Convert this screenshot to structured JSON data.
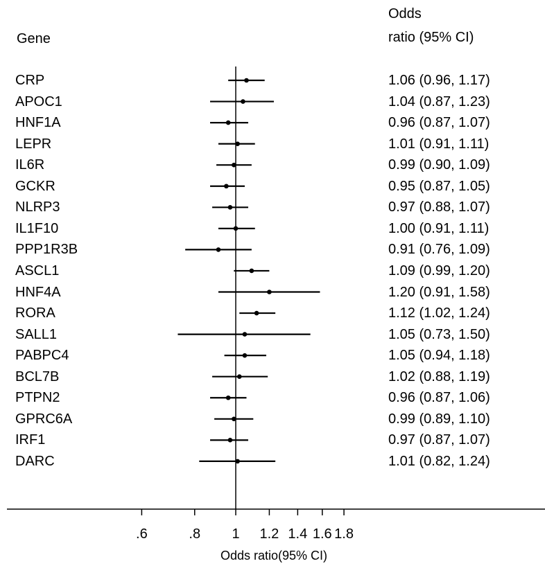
{
  "headers": {
    "gene": "Gene",
    "or_line1": "Odds",
    "or_line2": "ratio (95% CI)"
  },
  "chart_data": {
    "type": "forest",
    "title": "",
    "xlabel": "Odds ratio(95% CI)",
    "xscale": "log",
    "xlim": [
      0.53,
      1.95
    ],
    "reference_line": 1,
    "xticks": [
      {
        "value": 0.6,
        "label": ".6"
      },
      {
        "value": 0.8,
        "label": ".8"
      },
      {
        "value": 1.0,
        "label": "1"
      },
      {
        "value": 1.2,
        "label": "1.2"
      },
      {
        "value": 1.4,
        "label": "1.4"
      },
      {
        "value": 1.6,
        "label": "1.6"
      },
      {
        "value": 1.8,
        "label": "1.8"
      }
    ],
    "rows": [
      {
        "gene": "CRP",
        "or": 1.06,
        "lo": 0.96,
        "hi": 1.17,
        "text": "1.06 (0.96, 1.17)"
      },
      {
        "gene": "APOC1",
        "or": 1.04,
        "lo": 0.87,
        "hi": 1.23,
        "text": "1.04 (0.87, 1.23)"
      },
      {
        "gene": "HNF1A",
        "or": 0.96,
        "lo": 0.87,
        "hi": 1.07,
        "text": "0.96 (0.87, 1.07)"
      },
      {
        "gene": "LEPR",
        "or": 1.01,
        "lo": 0.91,
        "hi": 1.11,
        "text": "1.01 (0.91, 1.11)"
      },
      {
        "gene": "IL6R",
        "or": 0.99,
        "lo": 0.9,
        "hi": 1.09,
        "text": "0.99 (0.90, 1.09)"
      },
      {
        "gene": "GCKR",
        "or": 0.95,
        "lo": 0.87,
        "hi": 1.05,
        "text": "0.95 (0.87, 1.05)"
      },
      {
        "gene": "NLRP3",
        "or": 0.97,
        "lo": 0.88,
        "hi": 1.07,
        "text": "0.97 (0.88, 1.07)"
      },
      {
        "gene": "IL1F10",
        "or": 1.0,
        "lo": 0.91,
        "hi": 1.11,
        "text": "1.00 (0.91, 1.11)"
      },
      {
        "gene": "PPP1R3B",
        "or": 0.91,
        "lo": 0.76,
        "hi": 1.09,
        "text": "0.91 (0.76, 1.09)"
      },
      {
        "gene": "ASCL1",
        "or": 1.09,
        "lo": 0.99,
        "hi": 1.2,
        "text": "1.09 (0.99, 1.20)"
      },
      {
        "gene": "HNF4A",
        "or": 1.2,
        "lo": 0.91,
        "hi": 1.58,
        "text": "1.20 (0.91, 1.58)"
      },
      {
        "gene": "RORA",
        "or": 1.12,
        "lo": 1.02,
        "hi": 1.24,
        "text": "1.12 (1.02, 1.24)"
      },
      {
        "gene": "SALL1",
        "or": 1.05,
        "lo": 0.73,
        "hi": 1.5,
        "text": "1.05 (0.73, 1.50)"
      },
      {
        "gene": "PABPC4",
        "or": 1.05,
        "lo": 0.94,
        "hi": 1.18,
        "text": "1.05 (0.94, 1.18)"
      },
      {
        "gene": "BCL7B",
        "or": 1.02,
        "lo": 0.88,
        "hi": 1.19,
        "text": "1.02 (0.88, 1.19)"
      },
      {
        "gene": "PTPN2",
        "or": 0.96,
        "lo": 0.87,
        "hi": 1.06,
        "text": "0.96 (0.87, 1.06)"
      },
      {
        "gene": "GPRC6A",
        "or": 0.99,
        "lo": 0.89,
        "hi": 1.1,
        "text": "0.99 (0.89, 1.10)"
      },
      {
        "gene": "IRF1",
        "or": 0.97,
        "lo": 0.87,
        "hi": 1.07,
        "text": "0.97 (0.87, 1.07)"
      },
      {
        "gene": "DARC",
        "or": 1.01,
        "lo": 0.82,
        "hi": 1.24,
        "text": "1.01 (0.82, 1.24)"
      }
    ],
    "grid": false,
    "legend": "none"
  }
}
